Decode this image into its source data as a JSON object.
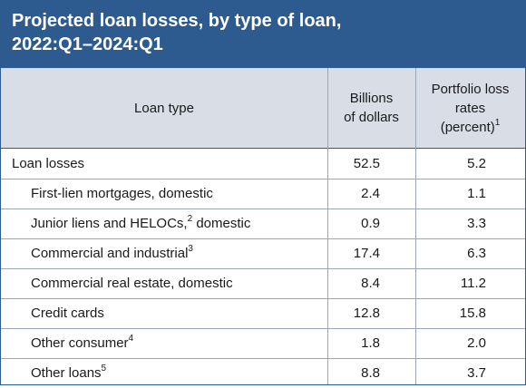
{
  "title": {
    "line1": "Projected loan losses, by type of loan,",
    "line2": "2022:Q1–2024:Q1"
  },
  "columns": {
    "loan_type": "Loan type",
    "billions_line1": "Billions",
    "billions_line2": "of dollars",
    "rates_line1": "Portfolio loss",
    "rates_line2": "rates",
    "rates_line3": "(percent)",
    "rates_note": "1"
  },
  "rows": [
    {
      "label": "Loan losses",
      "note": "",
      "label_suffix": "",
      "billions": "52.5",
      "rate": "5.2"
    },
    {
      "label": "First-lien mortgages, domestic",
      "note": "",
      "label_suffix": "",
      "billions": "2.4",
      "rate": "1.1"
    },
    {
      "label": "Junior liens and HELOCs,",
      "note": "2",
      "label_suffix": " domestic",
      "billions": "0.9",
      "rate": "3.3"
    },
    {
      "label": "Commercial and industrial",
      "note": "3",
      "label_suffix": "",
      "billions": "17.4",
      "rate": "6.3"
    },
    {
      "label": "Commercial real estate, domestic",
      "note": "",
      "label_suffix": "",
      "billions": "8.4",
      "rate": "11.2"
    },
    {
      "label": "Credit cards",
      "note": "",
      "label_suffix": "",
      "billions": "12.8",
      "rate": "15.8"
    },
    {
      "label": "Other consumer",
      "note": "4",
      "label_suffix": "",
      "billions": "1.8",
      "rate": "2.0"
    },
    {
      "label": "Other loans",
      "note": "5",
      "label_suffix": "",
      "billions": "8.8",
      "rate": "3.7"
    }
  ]
}
